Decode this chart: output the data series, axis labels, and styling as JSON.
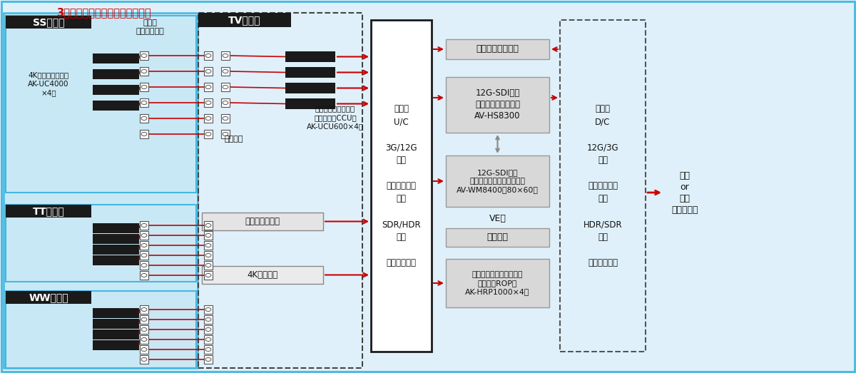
{
  "title": "3ホールでカメラを移動して運用",
  "ss_label": "SSホール",
  "tt_label": "TTホール",
  "ww_label": "WWホール",
  "tv_label": "TV調整室",
  "camera_console": "カメラ\nコンセント盤",
  "patch_label": "パッチ盤",
  "ccu_label": "カメラコントロール\nユニット（CCU）\nAK-UCU600×4式",
  "ss_camera_label": "4Kスタジオカメラ\nAK-UC4000\n×4式",
  "video_server": "ビデオサーバー",
  "telop": "4Kテロップ",
  "center_box": "分配器\nU/C\n\n3G/12G\n変換\n\nフォーマット\n変換\n\nSDR/HDR\n変換\n\nビデオパッチ",
  "multiviewer": "マルチビューアー",
  "live_sw": "12G-SDI対応\nライブスイッチャー\nAV-HS8300",
  "routing_sw": "12G-SDI対応\nルーティングスイッチャー\nAV-WM8400（80×60）",
  "ve": "VE卓",
  "monitor": "モニター",
  "rop": "リモートオペレーション\nパネル（ROP）\nAK-HRP1000×4台",
  "right_box": "分配器\nD/C\n\n12G/3G\n変換\n\nフォーマット\n変換\n\nHDR/SDR\n変換\n\nビデオパッチ",
  "output": "収録\nor\n配信\n（光回線）",
  "red": "#cc0000",
  "black": "#1a1a1a",
  "light_blue_bg": "#dff0fa",
  "hall_bg": "#c8e8f5",
  "gray_box": "#d8d8d8",
  "border_blue": "#44b8e0",
  "gray_mid": "#aaaaaa",
  "white": "#ffffff",
  "tv_bg": "#dff0fa"
}
